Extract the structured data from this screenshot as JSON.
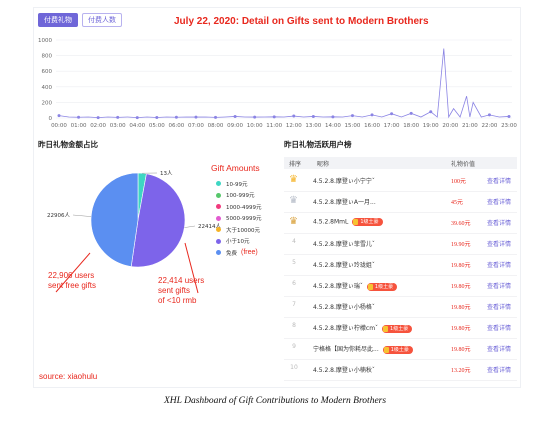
{
  "header": {
    "tabs": [
      {
        "label": "付费礼物",
        "active": true
      },
      {
        "label": "付费人数",
        "active": false
      }
    ],
    "annotation_title": "July 22, 2020:  Detail on Gifts sent to Modern Brothers"
  },
  "colors": {
    "accent": "#6f66d8",
    "annotation": "#e8281e",
    "line": "#8b84e4"
  },
  "chart_data": [
    {
      "type": "line",
      "x": [
        "00:00",
        "01:00",
        "02:00",
        "03:00",
        "04:00",
        "05:00",
        "06:00",
        "07:00",
        "08:00",
        "09:00",
        "10:00",
        "11:00",
        "12:00",
        "13:00",
        "14:00",
        "15:00",
        "16:00",
        "17:00",
        "18:00",
        "19:00",
        "20:00",
        "21:00",
        "22:00",
        "23:00"
      ],
      "y_ticks": [
        "0",
        "200",
        "400",
        "600",
        "800",
        "1000"
      ],
      "ylim": [
        0,
        1000
      ],
      "peaks": [
        {
          "time": "00:00",
          "value": 30
        },
        {
          "time": "01:00",
          "value": 10
        },
        {
          "time": "02:00",
          "value": 5
        },
        {
          "time": "03:00",
          "value": 8
        },
        {
          "time": "04:00",
          "value": 5
        },
        {
          "time": "05:00",
          "value": 6
        },
        {
          "time": "06:00",
          "value": 10
        },
        {
          "time": "07:00",
          "value": 12
        },
        {
          "time": "08:00",
          "value": 8
        },
        {
          "time": "09:00",
          "value": 20
        },
        {
          "time": "10:00",
          "value": 12
        },
        {
          "time": "11:00",
          "value": 15
        },
        {
          "time": "12:00",
          "value": 25
        },
        {
          "time": "13:00",
          "value": 20
        },
        {
          "time": "14:00",
          "value": 15
        },
        {
          "time": "15:00",
          "value": 30
        },
        {
          "time": "16:00",
          "value": 40
        },
        {
          "time": "17:00",
          "value": 55
        },
        {
          "time": "18:00",
          "value": 60
        },
        {
          "time": "19:00",
          "value": 80
        },
        {
          "time": "19:40",
          "value": 890
        },
        {
          "time": "20:10",
          "value": 120
        },
        {
          "time": "20:50",
          "value": 280
        },
        {
          "time": "21:10",
          "value": 200
        },
        {
          "time": "22:00",
          "value": 40
        },
        {
          "time": "23:00",
          "value": 20
        }
      ]
    },
    {
      "type": "pie",
      "title": "昨日礼物金额占比",
      "slices": [
        {
          "label": "13人",
          "value": 13,
          "color": "#3ed6c3"
        },
        {
          "label": "22414人",
          "value": 22414,
          "color": "#7d64ea"
        },
        {
          "label": "22906人",
          "value": 22906,
          "color": "#5b8ff1"
        }
      ]
    }
  ],
  "legend": {
    "title": "Gift Amounts",
    "items": [
      {
        "label": "10-99元",
        "color": "#3ed6c3"
      },
      {
        "label": "100-999元",
        "color": "#57c76b"
      },
      {
        "label": "1000-4999元",
        "color": "#f13a7d"
      },
      {
        "label": "5000-9999元",
        "color": "#e25bd0"
      },
      {
        "label": "大于10000元",
        "color": "#f5b326"
      },
      {
        "label": "小于10元",
        "color": "#7d64ea"
      },
      {
        "label": "免费",
        "color": "#5b8ff1",
        "note": "(free)"
      }
    ]
  },
  "annotations": {
    "free_users": "22,906 users\nsent free gifts",
    "small_gifts": "22,414 users\nsent gifts\nof <10 rmb",
    "source": "source: xiaohulu",
    "caption": "XHL Dashboard of Gift Contributions to Modern Brothers"
  },
  "ranking": {
    "title": "昨日礼物活跃用户榜",
    "headers": {
      "rank": "排序",
      "name": "昵称",
      "value": "礼物价值"
    },
    "rows": [
      {
        "rank": "1",
        "crown": "gold",
        "name": "4.5.2.8.摩登ぃ小宁宁ˇ",
        "badge": "",
        "value": "100元",
        "link": "查看详情"
      },
      {
        "rank": "2",
        "crown": "silver",
        "name": "4.5.2.8.摩登ぃA一月...",
        "badge": "",
        "value": "45元",
        "link": "查看详情"
      },
      {
        "rank": "3",
        "crown": "bronze",
        "name": "4.5.2.8MmL",
        "badge": "1级土豪",
        "value": "39.60元",
        "link": "查看详情"
      },
      {
        "rank": "4",
        "crown": "",
        "name": "4.5.2.8.摩登ぃ菲雪儿ˇ",
        "badge": "",
        "value": "19.90元",
        "link": "查看详情"
      },
      {
        "rank": "5",
        "crown": "",
        "name": "4.5.2.8.摩登ぃ玲珑姐ˇ",
        "badge": "",
        "value": "19.80元",
        "link": "查看详情"
      },
      {
        "rank": "6",
        "crown": "",
        "name": "4.5.2.8.摩登ぃ瑞ˇ",
        "badge": "1级土豪",
        "value": "19.80元",
        "link": "查看详情"
      },
      {
        "rank": "7",
        "crown": "",
        "name": "4.5.2.8.摩登ぃ小杨格ˇ",
        "badge": "",
        "value": "19.80元",
        "link": "查看详情"
      },
      {
        "rank": "8",
        "crown": "",
        "name": "4.5.2.8.摩登ぃ柠檬cmˇ",
        "badge": "1级土豪",
        "value": "19.80元",
        "link": "查看详情"
      },
      {
        "rank": "9",
        "crown": "",
        "name": "宁格格【国为你耗尽此...",
        "badge": "1级土豪",
        "value": "19.80元",
        "link": "查看详情"
      },
      {
        "rank": "10",
        "crown": "",
        "name": "4.5.2.8.摩登ぃ小楠秋ˇ",
        "badge": "",
        "value": "13.20元",
        "link": "查看详情"
      }
    ]
  }
}
